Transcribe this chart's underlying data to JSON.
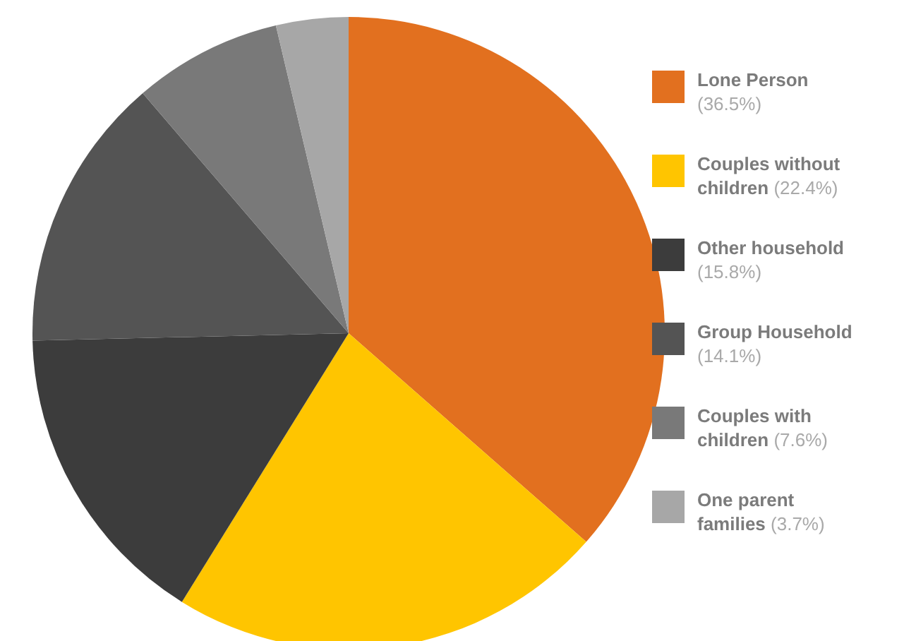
{
  "chart_data": {
    "type": "pie",
    "categories": [
      "Lone Person",
      "Couples without children",
      "Other household",
      "Group Household",
      "Couples with children",
      "One parent families"
    ],
    "values": [
      36.5,
      22.4,
      15.8,
      14.1,
      7.6,
      3.7
    ],
    "value_labels": [
      "(36.5%)",
      "(22.4%)",
      "(15.8%)",
      "(14.1%)",
      "(7.6%)",
      "(3.7%)"
    ],
    "colors": [
      "#e2701f",
      "#ffc500",
      "#3c3c3c",
      "#545454",
      "#797979",
      "#a7a7a7"
    ],
    "legend": "right"
  }
}
